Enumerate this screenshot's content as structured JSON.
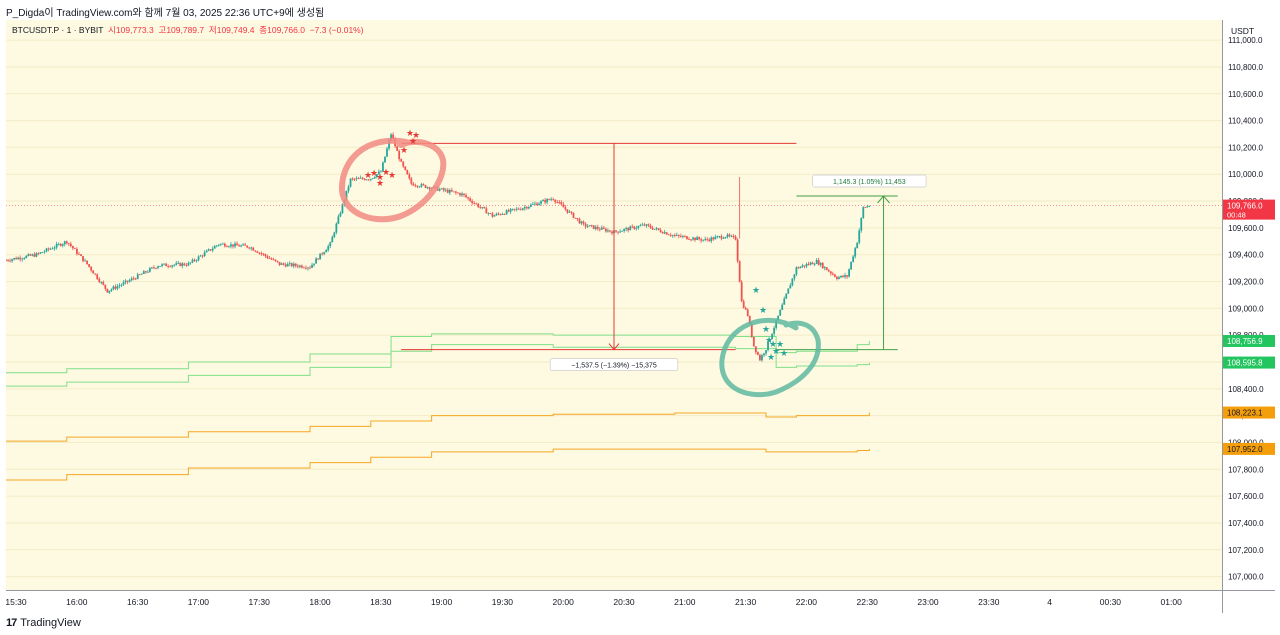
{
  "header": {
    "author_line": "P_Digda이 TradingView.com와 함께 7월 03, 2025 22:36 UTC+9에 생성됨"
  },
  "legend": {
    "symbol": "BTCUSDT.P · 1 · BYBIT",
    "open_label": "시",
    "open": "109,773.3",
    "high_label": "고",
    "high": "109,789.7",
    "low_label": "저",
    "low": "109,749.4",
    "close_label": "종",
    "close": "109,766.0",
    "change": "−7.3 (−0.01%)"
  },
  "price_axis": {
    "unit": "USDT",
    "ticks": [
      "111,000.0",
      "110,800.0",
      "110,600.0",
      "110,400.0",
      "110,200.0",
      "110,000.0",
      "109,800.0",
      "109,600.0",
      "109,400.0",
      "109,200.0",
      "109,000.0",
      "108,800.0",
      "108,600.0",
      "108,400.0",
      "108,200.0",
      "108,000.0",
      "107,800.0",
      "107,600.0",
      "107,400.0",
      "107,200.0",
      "107,000.0"
    ]
  },
  "time_axis": {
    "ticks": [
      "15:30",
      "16:00",
      "16:30",
      "17:00",
      "17:30",
      "18:00",
      "18:30",
      "19:00",
      "19:30",
      "20:00",
      "20:30",
      "21:00",
      "21:30",
      "22:00",
      "22:30",
      "23:00",
      "23:30",
      "4",
      "00:30",
      "01:00"
    ]
  },
  "price_labels": [
    {
      "text": "109,766.0",
      "sub": "00:48",
      "color": "#f23645"
    },
    {
      "text": "108,756.9",
      "color": "#22c55e"
    },
    {
      "text": "108,595.8",
      "color": "#22c55e"
    },
    {
      "text": "108,223.1",
      "color": "#f59e0b"
    },
    {
      "text": "107,952.0",
      "color": "#f59e0b"
    }
  ],
  "measurements": {
    "down": "−1,537.5 (−1.39%) −15,375",
    "up": "1,145.3 (1.05%) 11,453"
  },
  "footer": {
    "brand": "TradingView",
    "mark": "17"
  },
  "colors": {
    "up": "#26a69a",
    "down": "#ef5350",
    "bg": "#fef9e1",
    "green_band": "#7ee08a",
    "orange_band": "#f5a623",
    "circle_red": "#f28b82",
    "circle_teal": "#5fb8a0"
  },
  "chart_data": {
    "type": "line",
    "title": "",
    "xlabel": "",
    "ylabel": "",
    "ylim": [
      106900,
      111150
    ],
    "y_unit": "USDT",
    "close_series": {
      "x": [
        "15:30",
        "15:45",
        "16:00",
        "16:10",
        "16:20",
        "16:30",
        "16:45",
        "17:00",
        "17:15",
        "17:30",
        "17:45",
        "18:00",
        "18:10",
        "18:20",
        "18:30",
        "18:35",
        "18:40",
        "18:45",
        "18:50",
        "19:00",
        "19:15",
        "19:30",
        "19:45",
        "20:00",
        "20:15",
        "20:30",
        "20:45",
        "21:00",
        "21:15",
        "21:25",
        "21:30",
        "21:33",
        "21:36",
        "21:39",
        "21:42",
        "21:45",
        "21:50",
        "22:00",
        "22:10",
        "22:20",
        "22:25",
        "22:30",
        "22:33",
        "22:36"
      ],
      "y": [
        109360,
        109400,
        109500,
        109330,
        109130,
        109200,
        109320,
        109330,
        109480,
        109460,
        109330,
        109310,
        109480,
        109960,
        109970,
        110020,
        110300,
        110080,
        109930,
        109900,
        109850,
        109690,
        109750,
        109820,
        109620,
        109570,
        109620,
        109540,
        109510,
        109540,
        109520,
        109050,
        108950,
        108720,
        108620,
        108700,
        108900,
        109300,
        109350,
        109230,
        109240,
        109500,
        109750,
        109766
      ]
    },
    "series": [
      {
        "x": [
          "15:30",
          "16:00",
          "17:00",
          "18:00",
          "18:40",
          "19:00",
          "20:00",
          "21:00",
          "21:30",
          "21:50",
          "22:00",
          "22:30",
          "22:36"
        ],
        "y": [
          108520,
          108550,
          108600,
          108660,
          108790,
          108810,
          108800,
          108800,
          108790,
          108670,
          108680,
          108730,
          108756.9
        ]
      },
      {
        "x": [
          "15:30",
          "16:00",
          "17:00",
          "18:00",
          "18:40",
          "19:00",
          "20:00",
          "21:00",
          "21:30",
          "21:50",
          "22:00",
          "22:30",
          "22:36"
        ],
        "y": [
          108420,
          108450,
          108500,
          108560,
          108680,
          108730,
          108710,
          108710,
          108700,
          108560,
          108570,
          108580,
          108595.8
        ]
      },
      {
        "x": [
          "15:30",
          "16:00",
          "17:00",
          "18:00",
          "18:30",
          "19:00",
          "20:00",
          "21:00",
          "21:30",
          "21:45",
          "22:00",
          "22:30",
          "22:36"
        ],
        "y": [
          108010,
          108040,
          108080,
          108120,
          108160,
          108200,
          108210,
          108220,
          108220,
          108190,
          108200,
          108200,
          108223.1
        ]
      },
      {
        "x": [
          "15:30",
          "16:00",
          "17:00",
          "18:00",
          "18:30",
          "19:00",
          "20:00",
          "21:00",
          "21:30",
          "21:45",
          "22:00",
          "22:30",
          "22:36"
        ],
        "y": [
          107720,
          107760,
          107810,
          107850,
          107890,
          107930,
          107950,
          107950,
          107950,
          107930,
          107930,
          107940,
          107952.0
        ]
      }
    ],
    "annotations": [
      {
        "kind": "horizontal_line",
        "y": 110230,
        "x_from": "18:45",
        "x_to": "22:00"
      },
      {
        "kind": "horizontal_line",
        "y": 108692.5,
        "x_from": "18:45",
        "x_to": "22:00"
      },
      {
        "kind": "price_range",
        "from": 110230,
        "to": 108692.5,
        "text": "−1,537.5 (−1.39%) −15,375"
      },
      {
        "kind": "price_range",
        "from": 108692.5,
        "to": 109837.8,
        "text": "1,145.3 (1.05%) 11,453"
      },
      {
        "kind": "last_price",
        "y": 109766.0
      }
    ]
  }
}
